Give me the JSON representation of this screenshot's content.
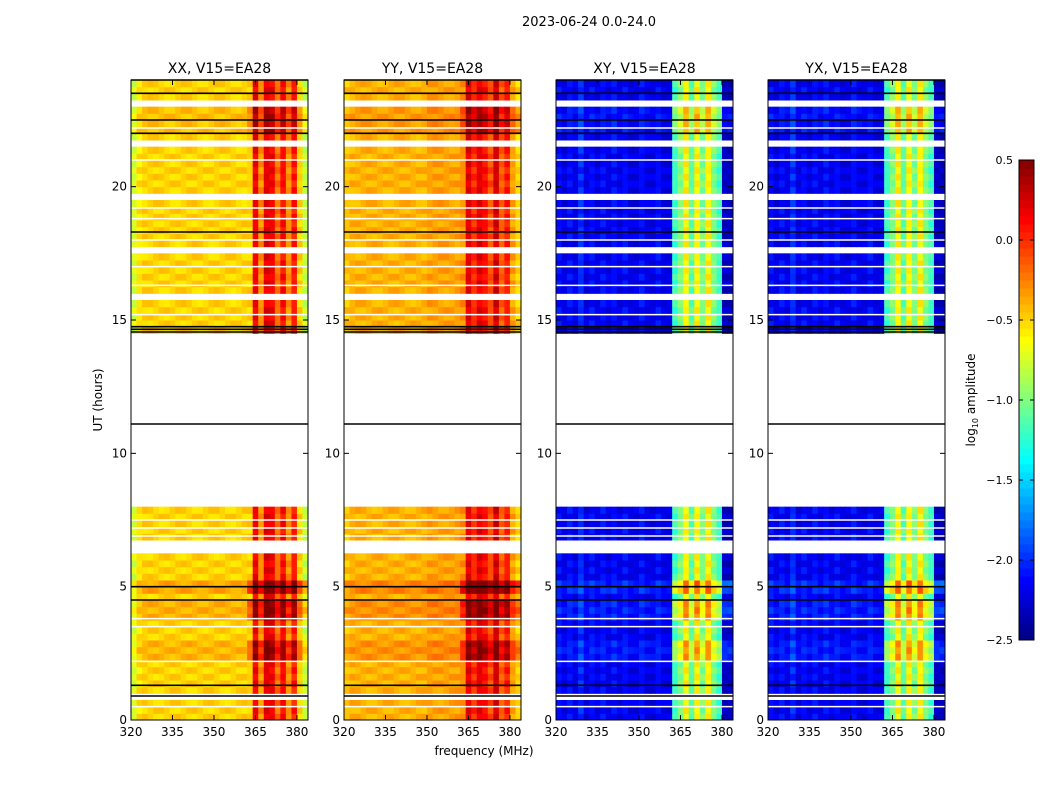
{
  "chart_data": {
    "type": "heatmap",
    "title": "2023-06-24 0.0-24.0",
    "xlabel": "frequency (MHz)",
    "ylabel": "UT (hours)",
    "xlim": [
      320,
      384
    ],
    "ylim": [
      0,
      24
    ],
    "xticks": [
      320,
      335,
      350,
      365,
      380
    ],
    "yticks": [
      0,
      5,
      10,
      15,
      20
    ],
    "colorbar": {
      "label_main": "log",
      "label_sub": "10",
      "label_tail": " amplitude",
      "range": [
        -2.5,
        0.5
      ],
      "ticks": [
        "0.5",
        "0.0",
        "−0.5",
        "−1.0",
        "−1.5",
        "−2.0",
        "−2.5"
      ],
      "tick_values": [
        0.5,
        0,
        -0.5,
        -1,
        -1.5,
        -2,
        -2.5
      ],
      "colormap": "jet"
    },
    "freq_bin_MHz": 2,
    "time_bin_hours": 0.25,
    "panels": [
      {
        "title": "XX, V15=EA28",
        "profile": [
          -0.75,
          -0.55,
          -0.5,
          -0.5,
          -0.5,
          -0.5,
          -0.5,
          -0.5,
          -0.5,
          -0.5,
          -0.5,
          -0.5,
          -0.5,
          -0.5,
          -0.5,
          -0.5,
          -0.5,
          -0.5,
          -0.5,
          -0.5,
          -0.5,
          -0.5,
          0.15,
          -0.3,
          0.2,
          0.15,
          -0.2,
          0.1,
          -0.3,
          0.05,
          -0.5,
          -0.8
        ]
      },
      {
        "title": "YY, V15=EA28",
        "profile": [
          -0.45,
          -0.4,
          -0.4,
          -0.4,
          -0.4,
          -0.4,
          -0.4,
          -0.4,
          -0.4,
          -0.4,
          -0.4,
          -0.4,
          -0.4,
          -0.4,
          -0.4,
          -0.35,
          -0.35,
          -0.35,
          -0.35,
          -0.35,
          -0.35,
          -0.3,
          0.2,
          0.0,
          0.2,
          0.1,
          -0.1,
          0.25,
          -0.15,
          0.05,
          -0.35,
          -0.5
        ]
      },
      {
        "title": "XY, V15=EA28",
        "profile": [
          -2.1,
          -2.2,
          -2.1,
          -2.2,
          -2.0,
          -2.2,
          -2.1,
          -2.2,
          -2.1,
          -2.2,
          -2.1,
          -2.2,
          -2.1,
          -2.2,
          -2.2,
          -2.1,
          -2.2,
          -2.2,
          -2.1,
          -2.2,
          -2.2,
          -1.2,
          -1.0,
          -0.6,
          -1.1,
          -0.6,
          -1.0,
          -0.6,
          -1.0,
          -1.2,
          -2.3,
          -2.3
        ]
      },
      {
        "title": "YX, V15=EA28",
        "profile": [
          -2.1,
          -2.2,
          -2.1,
          -2.2,
          -2.0,
          -2.2,
          -2.1,
          -2.2,
          -2.1,
          -2.2,
          -2.1,
          -2.2,
          -2.1,
          -2.2,
          -2.2,
          -2.1,
          -2.2,
          -2.2,
          -2.1,
          -2.2,
          -2.2,
          -1.2,
          -1.0,
          -0.6,
          -1.1,
          -0.6,
          -1.0,
          -0.6,
          -1.0,
          -1.2,
          -2.3,
          -2.3
        ]
      }
    ],
    "time_boosts": [
      {
        "from": 2.25,
        "to": 3.0,
        "boost": 0.3
      },
      {
        "from": 3.75,
        "to": 4.5,
        "boost": 0.35
      },
      {
        "from": 4.75,
        "to": 5.25,
        "boost": 0.45
      },
      {
        "from": 22.0,
        "to": 23.0,
        "boost": 0.2
      }
    ],
    "gaps_hours": [
      [
        0.75,
        1.0
      ],
      [
        6.25,
        6.75
      ],
      [
        8.0,
        14.5
      ],
      [
        15.75,
        16.0
      ],
      [
        17.5,
        17.75
      ],
      [
        19.5,
        19.75
      ],
      [
        21.5,
        21.75
      ],
      [
        23.0,
        23.25
      ]
    ],
    "flag_lines_hours": [
      0.9,
      1.3,
      4.5,
      5.0,
      11.1,
      14.55,
      14.65,
      14.75,
      18.3,
      22.0,
      22.5,
      23.5,
      24.0
    ],
    "white_lines_hours": [
      0.5,
      2.2,
      3.5,
      3.8,
      6.9,
      7.2,
      7.5,
      15.2,
      16.3,
      17.0,
      18.0,
      18.8,
      19.2,
      21.0,
      22.2
    ]
  }
}
